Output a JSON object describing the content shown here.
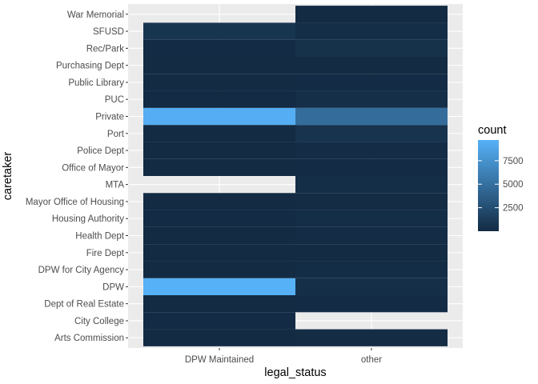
{
  "chart_data": {
    "type": "heatmap",
    "xlabel": "legal_status",
    "ylabel": "caretaker",
    "x_categories": [
      "DPW Maintained",
      "other"
    ],
    "y_categories": [
      "Arts Commission",
      "City College",
      "Dept of Real Estate",
      "DPW",
      "DPW for City Agency",
      "Fire Dept",
      "Health Dept",
      "Housing Authority",
      "Mayor Office of Housing",
      "MTA",
      "Office of Mayor",
      "Police Dept",
      "Port",
      "Private",
      "PUC",
      "Public Library",
      "Purchasing Dept",
      "Rec/Park",
      "SFUSD",
      "War Memorial"
    ],
    "cells": [
      {
        "x": "DPW Maintained",
        "y": "Arts Commission",
        "value": 40
      },
      {
        "x": "other",
        "y": "Arts Commission",
        "value": 120
      },
      {
        "x": "DPW Maintained",
        "y": "City College",
        "value": 30
      },
      {
        "x": "DPW Maintained",
        "y": "Dept of Real Estate",
        "value": 15
      },
      {
        "x": "other",
        "y": "Dept of Real Estate",
        "value": 30
      },
      {
        "x": "DPW Maintained",
        "y": "DPW",
        "value": 9700
      },
      {
        "x": "other",
        "y": "DPW",
        "value": 300
      },
      {
        "x": "DPW Maintained",
        "y": "DPW for City Agency",
        "value": 20
      },
      {
        "x": "other",
        "y": "DPW for City Agency",
        "value": 150
      },
      {
        "x": "DPW Maintained",
        "y": "Fire Dept",
        "value": 10
      },
      {
        "x": "other",
        "y": "Fire Dept",
        "value": 60
      },
      {
        "x": "DPW Maintained",
        "y": "Health Dept",
        "value": 20
      },
      {
        "x": "other",
        "y": "Health Dept",
        "value": 100
      },
      {
        "x": "DPW Maintained",
        "y": "Housing Authority",
        "value": 30
      },
      {
        "x": "other",
        "y": "Housing Authority",
        "value": 200
      },
      {
        "x": "DPW Maintained",
        "y": "Mayor Office of Housing",
        "value": 10
      },
      {
        "x": "other",
        "y": "Mayor Office of Housing",
        "value": 80
      },
      {
        "x": "other",
        "y": "MTA",
        "value": 200
      },
      {
        "x": "DPW Maintained",
        "y": "Office of Mayor",
        "value": 10
      },
      {
        "x": "other",
        "y": "Office of Mayor",
        "value": 30
      },
      {
        "x": "DPW Maintained",
        "y": "Police Dept",
        "value": 20
      },
      {
        "x": "other",
        "y": "Police Dept",
        "value": 100
      },
      {
        "x": "DPW Maintained",
        "y": "Port",
        "value": 40
      },
      {
        "x": "other",
        "y": "Port",
        "value": 600
      },
      {
        "x": "DPW Maintained",
        "y": "Private",
        "value": 9500
      },
      {
        "x": "other",
        "y": "Private",
        "value": 4800
      },
      {
        "x": "DPW Maintained",
        "y": "PUC",
        "value": 30
      },
      {
        "x": "other",
        "y": "PUC",
        "value": 300
      },
      {
        "x": "DPW Maintained",
        "y": "Public Library",
        "value": 10
      },
      {
        "x": "other",
        "y": "Public Library",
        "value": 30
      },
      {
        "x": "DPW Maintained",
        "y": "Purchasing Dept",
        "value": 5
      },
      {
        "x": "other",
        "y": "Purchasing Dept",
        "value": 20
      },
      {
        "x": "DPW Maintained",
        "y": "Rec/Park",
        "value": 30
      },
      {
        "x": "other",
        "y": "Rec/Park",
        "value": 400
      },
      {
        "x": "DPW Maintained",
        "y": "SFUSD",
        "value": 700
      },
      {
        "x": "other",
        "y": "SFUSD",
        "value": 200
      },
      {
        "x": "other",
        "y": "War Memorial",
        "value": 20
      }
    ],
    "legend": {
      "title": "count",
      "position": "right",
      "ticks": [
        2500,
        5000,
        7500
      ],
      "tick_labels": [
        "2500",
        "5000",
        "7500"
      ],
      "range": [
        0,
        9700
      ],
      "low_color": "#132B43",
      "high_color": "#56B1F7"
    },
    "panel_background": "#EBEBEB",
    "grid": true
  }
}
